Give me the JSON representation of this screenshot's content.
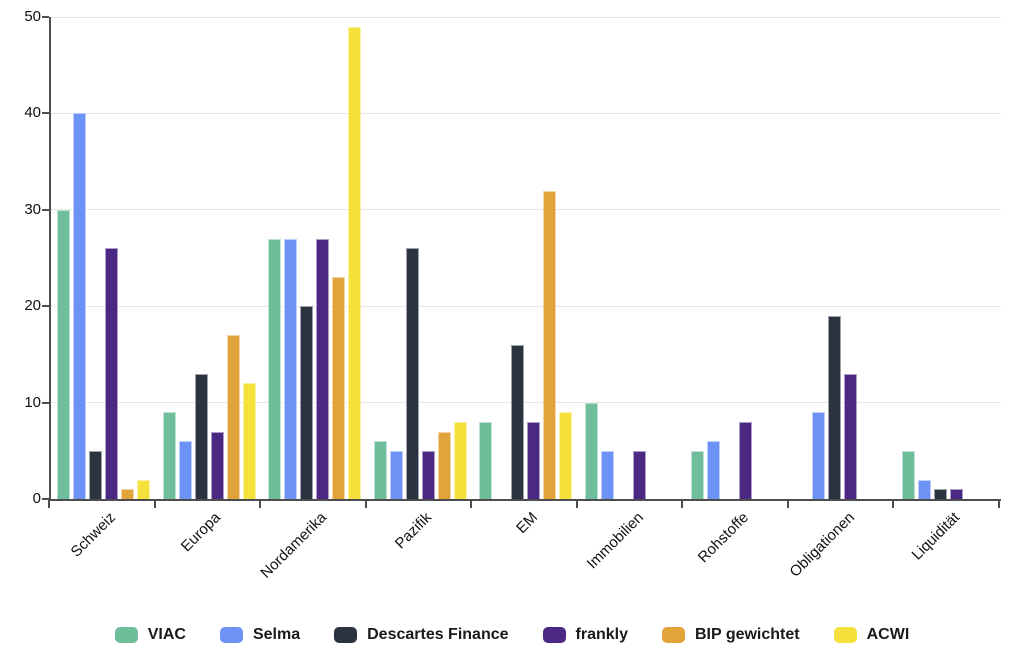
{
  "chart_data": {
    "type": "bar",
    "title": "",
    "xlabel": "",
    "ylabel": "",
    "categories": [
      "Schweiz",
      "Europa",
      "Nordamerika",
      "Pazifik",
      "EM",
      "Immobilien",
      "Rohstoffe",
      "Obligationen",
      "Liquidität"
    ],
    "series": [
      {
        "name": "VIAC",
        "color": "#6fbe9b",
        "values": [
          30,
          9,
          27,
          6,
          8,
          10,
          5,
          0,
          5
        ]
      },
      {
        "name": "Selma",
        "color": "#6d92f6",
        "values": [
          40,
          6,
          27,
          5,
          0,
          5,
          6,
          9,
          2
        ]
      },
      {
        "name": "Descartes Finance",
        "color": "#2b3240",
        "values": [
          5,
          13,
          20,
          26,
          16,
          0,
          0,
          19,
          1
        ]
      },
      {
        "name": "frankly",
        "color": "#4b2884",
        "values": [
          26,
          7,
          27,
          5,
          8,
          5,
          8,
          13,
          1
        ]
      },
      {
        "name": "BIP gewichtet",
        "color": "#e2a43a",
        "values": [
          1,
          17,
          23,
          7,
          32,
          0,
          0,
          0,
          0
        ]
      },
      {
        "name": "ACWI",
        "color": "#f4e13c",
        "values": [
          2,
          12,
          49,
          8,
          9,
          0,
          0,
          0,
          0
        ]
      }
    ],
    "ylim": [
      0,
      50
    ],
    "yticks": [
      0,
      10,
      20,
      30,
      40,
      50
    ],
    "grid": true,
    "legend_position": "bottom",
    "colors": {
      "axis": "#4d4d4d",
      "gridline": "#e7e7e7",
      "tick_text": "#111111",
      "legend_text": "#1a1a1a",
      "background": "#ffffff"
    }
  }
}
